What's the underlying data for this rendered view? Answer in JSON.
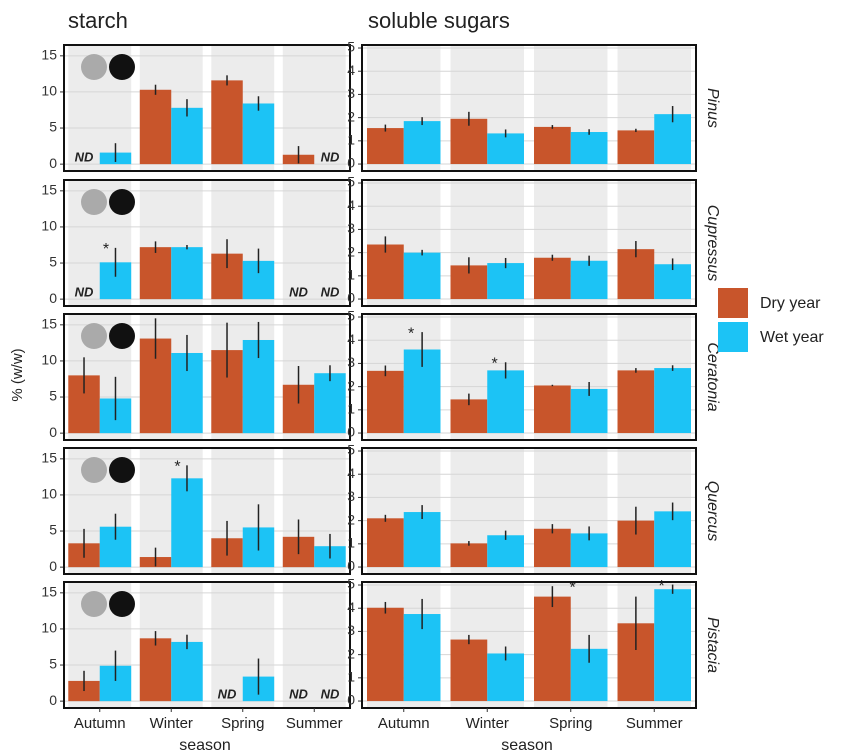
{
  "columns": [
    "starch",
    "soluble sugars"
  ],
  "rows": [
    "Pinus",
    "Cupressus",
    "Ceratonia",
    "Quercus",
    "Pistacia"
  ],
  "y_label": "% (w/w)",
  "x_label": "season",
  "chart_data": [
    {
      "type": "bar",
      "categories": [
        "Autumn",
        "Winter",
        "Spring",
        "Summer"
      ],
      "ylim": [
        -0.95,
        16.5
      ],
      "yticks": [
        0,
        5,
        10,
        15
      ],
      "grid": true,
      "series": [
        {
          "name": "Dry year",
          "color": "#c8552b",
          "values": [
            null,
            10.3,
            11.6,
            1.3
          ],
          "errors": [
            null,
            0.7,
            0.7,
            1.2
          ],
          "annotations": [
            "ND",
            null,
            null,
            null
          ]
        },
        {
          "name": "Wet year",
          "color": "#1cc3f5",
          "values": [
            1.6,
            7.8,
            8.4,
            null
          ],
          "errors": [
            1.3,
            1.2,
            1.0,
            null
          ],
          "annotations": [
            null,
            null,
            null,
            "ND"
          ]
        }
      ]
    },
    {
      "type": "bar",
      "categories": [
        "Autumn",
        "Winter",
        "Spring",
        "Summer"
      ],
      "ylim": [
        -0.95,
        16.5
      ],
      "yticks": [
        0,
        5,
        10,
        15
      ],
      "grid": true,
      "series": [
        {
          "name": "Dry year",
          "color": "#c8552b",
          "values": [
            null,
            7.2,
            6.3,
            null
          ],
          "errors": [
            null,
            0.8,
            2.0,
            null
          ],
          "annotations": [
            "ND",
            null,
            null,
            "ND"
          ]
        },
        {
          "name": "Wet year",
          "color": "#1cc3f5",
          "values": [
            5.1,
            7.2,
            5.3,
            null
          ],
          "errors": [
            2.0,
            0.3,
            1.7,
            null
          ],
          "annotations": [
            "*",
            null,
            null,
            "ND"
          ]
        }
      ]
    },
    {
      "type": "bar",
      "categories": [
        "Autumn",
        "Winter",
        "Spring",
        "Summer"
      ],
      "ylim": [
        -0.95,
        16.5
      ],
      "yticks": [
        0,
        5,
        10,
        15
      ],
      "grid": true,
      "series": [
        {
          "name": "Dry year",
          "color": "#c8552b",
          "values": [
            8.0,
            13.1,
            11.5,
            6.7
          ],
          "errors": [
            2.5,
            2.8,
            3.8,
            2.6
          ],
          "annotations": [
            null,
            null,
            null,
            null
          ]
        },
        {
          "name": "Wet year",
          "color": "#1cc3f5",
          "values": [
            4.8,
            11.1,
            12.9,
            8.3
          ],
          "errors": [
            3.0,
            2.5,
            2.5,
            1.1
          ],
          "annotations": [
            null,
            null,
            null,
            null
          ]
        }
      ]
    },
    {
      "type": "bar",
      "categories": [
        "Autumn",
        "Winter",
        "Spring",
        "Summer"
      ],
      "ylim": [
        -0.95,
        16.5
      ],
      "yticks": [
        0,
        5,
        10,
        15
      ],
      "grid": true,
      "series": [
        {
          "name": "Dry year",
          "color": "#c8552b",
          "values": [
            3.3,
            1.4,
            4.0,
            4.2
          ],
          "errors": [
            2.0,
            1.3,
            2.4,
            2.4
          ],
          "annotations": [
            null,
            null,
            null,
            null
          ]
        },
        {
          "name": "Wet year",
          "color": "#1cc3f5",
          "values": [
            5.6,
            12.3,
            5.5,
            2.9
          ],
          "errors": [
            1.8,
            1.8,
            3.2,
            1.7
          ],
          "annotations": [
            null,
            "*",
            null,
            null
          ]
        }
      ]
    },
    {
      "type": "bar",
      "categories": [
        "Autumn",
        "Winter",
        "Spring",
        "Summer"
      ],
      "ylim": [
        -0.95,
        16.5
      ],
      "yticks": [
        0,
        5,
        10,
        15
      ],
      "grid": true,
      "series": [
        {
          "name": "Dry year",
          "color": "#c8552b",
          "values": [
            2.8,
            8.7,
            null,
            null
          ],
          "errors": [
            1.4,
            1.0,
            null,
            null
          ],
          "annotations": [
            null,
            null,
            "ND",
            "ND"
          ]
        },
        {
          "name": "Wet year",
          "color": "#1cc3f5",
          "values": [
            4.9,
            8.2,
            3.4,
            null
          ],
          "errors": [
            2.1,
            1.0,
            2.5,
            null
          ],
          "annotations": [
            null,
            null,
            null,
            "ND"
          ]
        }
      ]
    },
    {
      "type": "bar",
      "categories": [
        "Autumn",
        "Winter",
        "Spring",
        "Summer"
      ],
      "ylim": [
        -0.3,
        5.13
      ],
      "yticks": [
        0,
        1,
        2,
        3,
        4,
        5
      ],
      "grid": true,
      "series": [
        {
          "name": "Dry year",
          "color": "#c8552b",
          "values": [
            1.55,
            1.95,
            1.6,
            1.45
          ],
          "errors": [
            0.15,
            0.3,
            0.08,
            0.07
          ],
          "annotations": [
            null,
            null,
            null,
            null
          ]
        },
        {
          "name": "Wet year",
          "color": "#1cc3f5",
          "values": [
            1.85,
            1.32,
            1.38,
            2.15
          ],
          "errors": [
            0.17,
            0.17,
            0.12,
            0.35
          ],
          "annotations": [
            null,
            null,
            null,
            null
          ]
        }
      ]
    },
    {
      "type": "bar",
      "categories": [
        "Autumn",
        "Winter",
        "Spring",
        "Summer"
      ],
      "ylim": [
        -0.3,
        5.13
      ],
      "yticks": [
        0,
        1,
        2,
        3,
        4,
        5
      ],
      "grid": true,
      "series": [
        {
          "name": "Dry year",
          "color": "#c8552b",
          "values": [
            2.35,
            1.45,
            1.78,
            2.15
          ],
          "errors": [
            0.35,
            0.35,
            0.13,
            0.35
          ],
          "annotations": [
            null,
            null,
            null,
            null
          ]
        },
        {
          "name": "Wet year",
          "color": "#1cc3f5",
          "values": [
            2.0,
            1.55,
            1.65,
            1.5
          ],
          "errors": [
            0.12,
            0.22,
            0.22,
            0.25
          ],
          "annotations": [
            null,
            null,
            null,
            null
          ]
        }
      ]
    },
    {
      "type": "bar",
      "categories": [
        "Autumn",
        "Winter",
        "Spring",
        "Summer"
      ],
      "ylim": [
        -0.3,
        5.13
      ],
      "yticks": [
        0,
        1,
        2,
        3,
        4,
        5
      ],
      "grid": true,
      "series": [
        {
          "name": "Dry year",
          "color": "#c8552b",
          "values": [
            2.68,
            1.45,
            2.05,
            2.7
          ],
          "errors": [
            0.23,
            0.25,
            0.03,
            0.1
          ],
          "annotations": [
            null,
            null,
            null,
            null
          ]
        },
        {
          "name": "Wet year",
          "color": "#1cc3f5",
          "values": [
            3.6,
            2.7,
            1.9,
            2.8
          ],
          "errors": [
            0.75,
            0.35,
            0.3,
            0.12
          ],
          "annotations": [
            "*",
            "*",
            null,
            null
          ]
        }
      ]
    },
    {
      "type": "bar",
      "categories": [
        "Autumn",
        "Winter",
        "Spring",
        "Summer"
      ],
      "ylim": [
        -0.3,
        5.13
      ],
      "yticks": [
        0,
        1,
        2,
        3,
        4,
        5
      ],
      "grid": true,
      "series": [
        {
          "name": "Dry year",
          "color": "#c8552b",
          "values": [
            2.1,
            1.02,
            1.65,
            2.0
          ],
          "errors": [
            0.15,
            0.1,
            0.2,
            0.6
          ],
          "annotations": [
            null,
            null,
            null,
            null
          ]
        },
        {
          "name": "Wet year",
          "color": "#1cc3f5",
          "values": [
            2.37,
            1.37,
            1.45,
            2.4
          ],
          "errors": [
            0.3,
            0.2,
            0.3,
            0.38
          ],
          "annotations": [
            null,
            null,
            null,
            null
          ]
        }
      ]
    },
    {
      "type": "bar",
      "categories": [
        "Autumn",
        "Winter",
        "Spring",
        "Summer"
      ],
      "ylim": [
        -0.3,
        5.13
      ],
      "yticks": [
        0,
        1,
        2,
        3,
        4,
        5
      ],
      "grid": true,
      "series": [
        {
          "name": "Dry year",
          "color": "#c8552b",
          "values": [
            4.02,
            2.65,
            4.5,
            3.35
          ],
          "errors": [
            0.25,
            0.2,
            0.45,
            1.15
          ],
          "annotations": [
            null,
            null,
            "*",
            null
          ]
        },
        {
          "name": "Wet year",
          "color": "#1cc3f5",
          "values": [
            3.75,
            2.05,
            2.25,
            4.82
          ],
          "errors": [
            0.65,
            0.3,
            0.6,
            0.2
          ],
          "annotations": [
            null,
            null,
            null,
            "*"
          ]
        }
      ]
    }
  ]
}
